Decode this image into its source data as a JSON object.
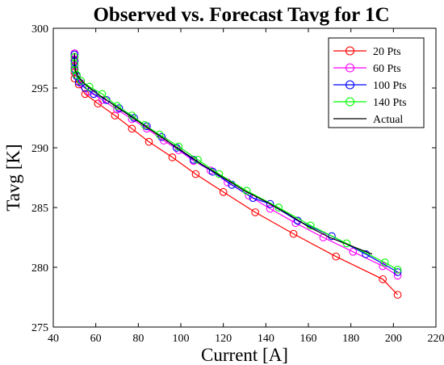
{
  "chart_data": {
    "type": "line",
    "title": "Observed vs. Forecast Tavg for 1C",
    "xlabel": "Current [A]",
    "ylabel": "Tavg [K]",
    "xlim": [
      40,
      220
    ],
    "ylim": [
      275,
      300
    ],
    "xticks": [
      40,
      60,
      80,
      100,
      120,
      140,
      160,
      180,
      200,
      220
    ],
    "yticks": [
      275,
      280,
      285,
      290,
      295,
      300
    ],
    "grid": false,
    "legend_position": "top-right",
    "series": [
      {
        "name": "20 Pts",
        "color": "#ff0000",
        "marker": "circle",
        "points": [
          [
            50,
            297.9
          ],
          [
            50,
            297.6
          ],
          [
            50,
            297.3
          ],
          [
            50,
            296.9
          ],
          [
            50,
            296.6
          ],
          [
            50,
            296.3
          ],
          [
            50,
            295.8
          ],
          [
            52,
            295.3
          ],
          [
            55,
            294.5
          ],
          [
            61,
            293.7
          ],
          [
            69,
            292.7
          ],
          [
            77,
            291.6
          ],
          [
            85,
            290.5
          ],
          [
            96,
            289.2
          ],
          [
            107,
            287.8
          ],
          [
            120,
            286.3
          ],
          [
            135,
            284.6
          ],
          [
            153,
            282.8
          ],
          [
            173,
            280.9
          ],
          [
            195,
            279.0
          ],
          [
            202,
            277.7
          ]
        ]
      },
      {
        "name": "60 Pts",
        "color": "#ff00ff",
        "marker": "circle",
        "points": [
          [
            50,
            297.9
          ],
          [
            50,
            297.4
          ],
          [
            50,
            296.9
          ],
          [
            50,
            296.4
          ],
          [
            51,
            296.0
          ],
          [
            53,
            295.4
          ],
          [
            57,
            294.7
          ],
          [
            63,
            294.0
          ],
          [
            70,
            293.2
          ],
          [
            77,
            292.4
          ],
          [
            84,
            291.6
          ],
          [
            92,
            290.6
          ],
          [
            99,
            289.8
          ],
          [
            106,
            288.9
          ],
          [
            114,
            288.1
          ],
          [
            122,
            287.1
          ],
          [
            132,
            286.0
          ],
          [
            142,
            284.9
          ],
          [
            154,
            283.7
          ],
          [
            167,
            282.5
          ],
          [
            181,
            281.3
          ],
          [
            195,
            280.1
          ],
          [
            202,
            279.3
          ]
        ]
      },
      {
        "name": "100 Pts",
        "color": "#0000ff",
        "marker": "circle",
        "points": [
          [
            50,
            297.8
          ],
          [
            50,
            297.2
          ],
          [
            50,
            296.6
          ],
          [
            51,
            296.0
          ],
          [
            52,
            295.5
          ],
          [
            55,
            295.0
          ],
          [
            59,
            294.5
          ],
          [
            65,
            294.0
          ],
          [
            71,
            293.3
          ],
          [
            78,
            292.5
          ],
          [
            84,
            291.8
          ],
          [
            91,
            290.9
          ],
          [
            98,
            290.0
          ],
          [
            106,
            289.0
          ],
          [
            115,
            288.0
          ],
          [
            124,
            286.9
          ],
          [
            134,
            285.8
          ],
          [
            142,
            285.3
          ],
          [
            155,
            283.9
          ],
          [
            171,
            282.6
          ],
          [
            187,
            281.1
          ],
          [
            202,
            279.6
          ]
        ]
      },
      {
        "name": "140 Pts",
        "color": "#00ff00",
        "marker": "circle",
        "points": [
          [
            50,
            297.6
          ],
          [
            50,
            297.0
          ],
          [
            50,
            296.5
          ],
          [
            51,
            296.1
          ],
          [
            53,
            295.6
          ],
          [
            57,
            295.1
          ],
          [
            63,
            294.5
          ],
          [
            70,
            293.5
          ],
          [
            77,
            292.7
          ],
          [
            83,
            291.9
          ],
          [
            90,
            291.1
          ],
          [
            99,
            290.1
          ],
          [
            108,
            289.0
          ],
          [
            118,
            287.8
          ],
          [
            131,
            286.4
          ],
          [
            146,
            285.0
          ],
          [
            161,
            283.5
          ],
          [
            178,
            282.0
          ],
          [
            196,
            280.4
          ],
          [
            202,
            279.8
          ]
        ]
      },
      {
        "name": "Actual",
        "color": "#000000",
        "marker": "none",
        "points": [
          [
            50,
            297.9
          ],
          [
            50,
            297.0
          ],
          [
            50.5,
            296.4
          ],
          [
            52,
            295.9
          ],
          [
            55,
            295.3
          ],
          [
            60,
            294.6
          ],
          [
            70,
            293.4
          ],
          [
            80,
            292.2
          ],
          [
            90,
            291.0
          ],
          [
            100,
            289.8
          ],
          [
            110,
            288.6
          ],
          [
            120,
            287.5
          ],
          [
            130,
            286.4
          ],
          [
            140,
            285.5
          ],
          [
            150,
            284.5
          ],
          [
            160,
            283.4
          ],
          [
            170,
            282.5
          ],
          [
            180,
            281.8
          ],
          [
            190,
            281.1
          ]
        ]
      }
    ]
  }
}
